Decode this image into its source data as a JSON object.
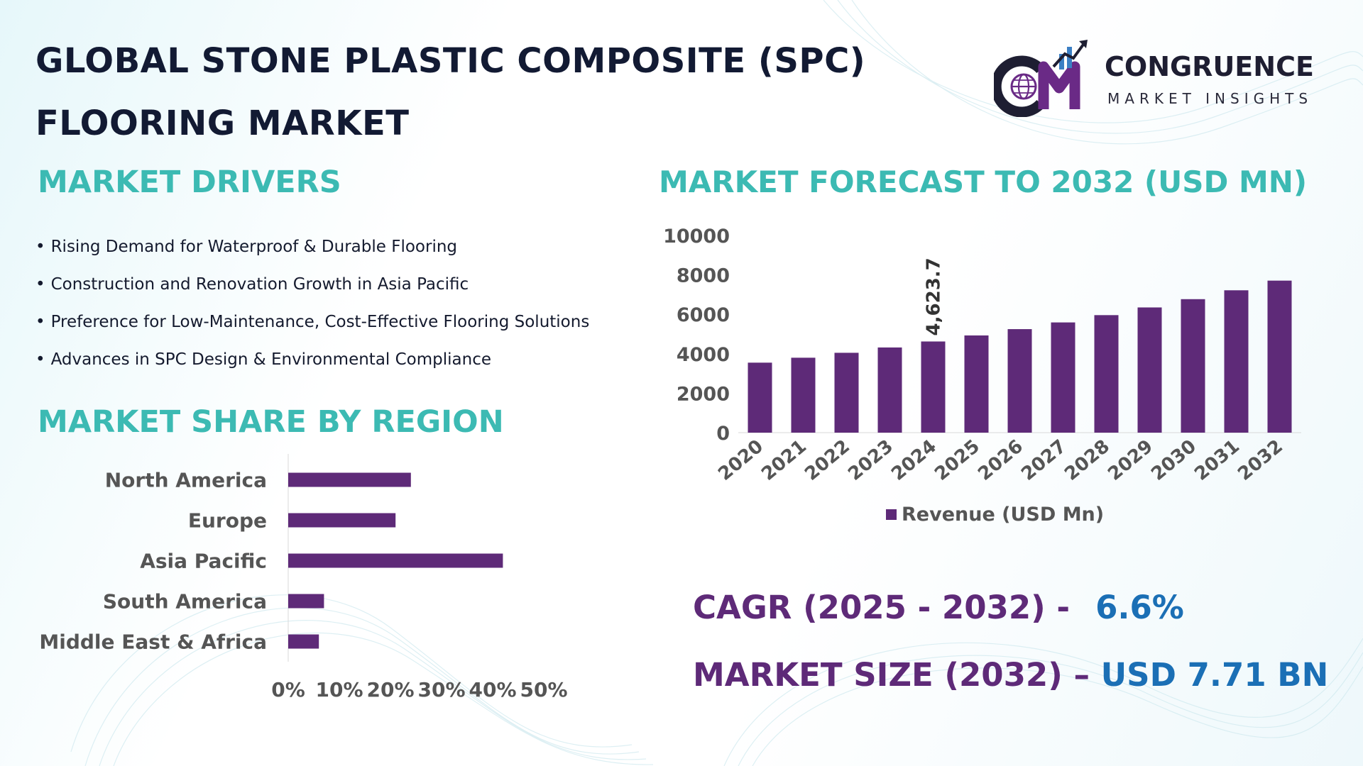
{
  "title": "GLOBAL STONE PLASTIC COMPOSITE (SPC) FLOORING MARKET",
  "logo": {
    "brand": "CONGRUENCE",
    "tagline": "MARKET INSIGHTS",
    "colors": {
      "dark": "#1e1e32",
      "accent": "#6a2a86",
      "arrow": "#3b7fc4"
    }
  },
  "drivers": {
    "heading": "MARKET DRIVERS",
    "items": [
      "Rising Demand for Waterproof & Durable Flooring",
      "Construction and Renovation Growth in Asia Pacific",
      "Preference for Low-Maintenance, Cost-Effective Flooring Solutions",
      "Advances in SPC Design & Environmental Compliance"
    ]
  },
  "region": {
    "heading": "MARKET SHARE BY REGION"
  },
  "forecast": {
    "heading": "MARKET FORECAST TO 2032 (USD MN)"
  },
  "kpis": {
    "cagr_label": "CAGR (2025 - 2032) -",
    "cagr_value": "6.6%",
    "size_label": "MARKET SIZE (2032) –",
    "size_value": "USD 7.71 BN"
  },
  "colors": {
    "bar": "#5e2a78",
    "heading": "#3cbab3",
    "kpi_label": "#5e2a78",
    "kpi_value": "#1b6fb5",
    "tick": "#555555"
  },
  "chart_data": [
    {
      "type": "bar",
      "orientation": "horizontal",
      "title": "",
      "categories": [
        "North America",
        "Europe",
        "Asia Pacific",
        "South America",
        "Middle East & Africa"
      ],
      "values": [
        24,
        21,
        42,
        7,
        6
      ],
      "xlim": [
        0,
        50
      ],
      "xticks": [
        "0%",
        "10%",
        "20%",
        "30%",
        "40%",
        "50%"
      ],
      "grid": false,
      "legend": "none"
    },
    {
      "type": "bar",
      "title": "",
      "categories": [
        "2020",
        "2021",
        "2022",
        "2023",
        "2024",
        "2025",
        "2026",
        "2027",
        "2028",
        "2029",
        "2030",
        "2031",
        "2032"
      ],
      "series": [
        {
          "name": "Revenue (USD Mn)",
          "values": [
            3550,
            3800,
            4050,
            4320,
            4623.7,
            4930,
            5250,
            5590,
            5960,
            6350,
            6770,
            7220,
            7710
          ]
        }
      ],
      "ylim": [
        0,
        10000
      ],
      "yticks": [
        "0",
        "2000",
        "4000",
        "6000",
        "8000",
        "10000"
      ],
      "annotations": [
        {
          "category": "2024",
          "text": "4,623.7"
        }
      ],
      "grid": false,
      "legend": "bottom"
    }
  ]
}
